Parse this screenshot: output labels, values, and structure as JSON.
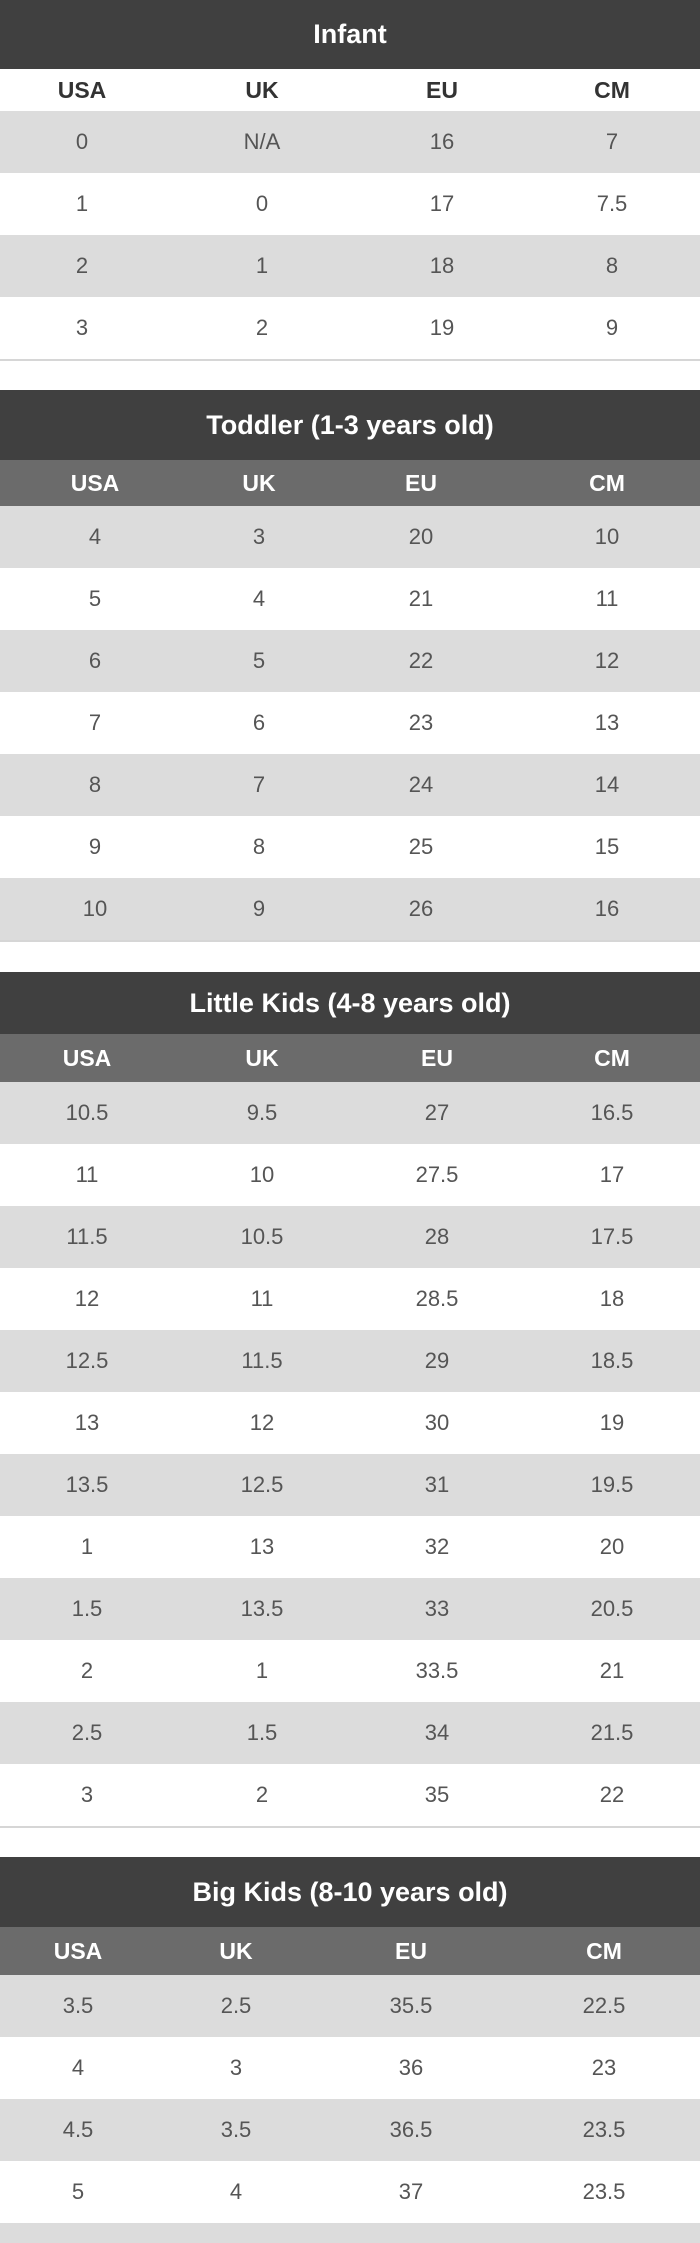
{
  "tables": [
    {
      "title": "Infant",
      "headers": [
        "USA",
        "UK",
        "EU",
        "CM"
      ],
      "rows": [
        [
          "0",
          "N/A",
          "16",
          "7"
        ],
        [
          "1",
          "0",
          "17",
          "7.5"
        ],
        [
          "2",
          "1",
          "18",
          "8"
        ],
        [
          "3",
          "2",
          "19",
          "9"
        ]
      ]
    },
    {
      "title": "Toddler (1-3 years old)",
      "headers": [
        "USA",
        "UK",
        "EU",
        "CM"
      ],
      "rows": [
        [
          "4",
          "3",
          "20",
          "10"
        ],
        [
          "5",
          "4",
          "21",
          "11"
        ],
        [
          "6",
          "5",
          "22",
          "12"
        ],
        [
          "7",
          "6",
          "23",
          "13"
        ],
        [
          "8",
          "7",
          "24",
          "14"
        ],
        [
          "9",
          "8",
          "25",
          "15"
        ],
        [
          "10",
          "9",
          "26",
          "16"
        ]
      ]
    },
    {
      "title": "Little Kids (4-8 years old)",
      "headers": [
        "USA",
        "UK",
        "EU",
        "CM"
      ],
      "rows": [
        [
          "10.5",
          "9.5",
          "27",
          "16.5"
        ],
        [
          "11",
          "10",
          "27.5",
          "17"
        ],
        [
          "11.5",
          "10.5",
          "28",
          "17.5"
        ],
        [
          "12",
          "11",
          "28.5",
          "18"
        ],
        [
          "12.5",
          "11.5",
          "29",
          "18.5"
        ],
        [
          "13",
          "12",
          "30",
          "19"
        ],
        [
          "13.5",
          "12.5",
          "31",
          "19.5"
        ],
        [
          "1",
          "13",
          "32",
          "20"
        ],
        [
          "1.5",
          "13.5",
          "33",
          "20.5"
        ],
        [
          "2",
          "1",
          "33.5",
          "21"
        ],
        [
          "2.5",
          "1.5",
          "34",
          "21.5"
        ],
        [
          "3",
          "2",
          "35",
          "22"
        ]
      ]
    },
    {
      "title": "Big Kids (8-10 years old)",
      "headers": [
        "USA",
        "UK",
        "EU",
        "CM"
      ],
      "rows": [
        [
          "3.5",
          "2.5",
          "35.5",
          "22.5"
        ],
        [
          "4",
          "3",
          "36",
          "23"
        ],
        [
          "4.5",
          "3.5",
          "36.5",
          "23.5"
        ],
        [
          "5",
          "4",
          "37",
          "23.5"
        ]
      ]
    }
  ]
}
